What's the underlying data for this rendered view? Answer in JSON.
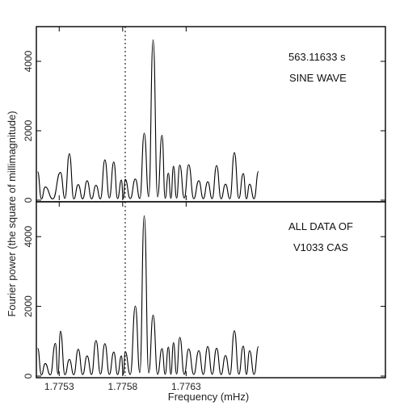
{
  "chart_data": [
    {
      "type": "line",
      "panel": "top",
      "annotations": [
        "563.11633 s",
        "SINE WAVE"
      ],
      "ylim": [
        0,
        5000
      ],
      "yticks": [
        0,
        2000,
        4000
      ],
      "xlim": [
        1.77512,
        1.77787
      ],
      "marker_x": 1.77582,
      "peaks": {
        "x": [
          1.77513,
          1.77519,
          1.77531,
          1.77538,
          1.77545,
          1.77552,
          1.77559,
          1.77566,
          1.77573,
          1.77579,
          1.77582,
          1.7759,
          1.77597,
          1.77604,
          1.77611,
          1.77616,
          1.7762,
          1.77625,
          1.77632,
          1.7764,
          1.77647,
          1.77654,
          1.77661,
          1.77668,
          1.77675,
          1.7768,
          1.77687
        ],
        "y": [
          820,
          380,
          800,
          1340,
          450,
          560,
          430,
          1160,
          1100,
          580,
          600,
          610,
          1930,
          4620,
          1870,
          780,
          980,
          1010,
          1020,
          560,
          530,
          1000,
          460,
          1370,
          770,
          460,
          830
        ]
      }
    },
    {
      "type": "line",
      "panel": "bottom",
      "annotations": [
        "ALL DATA OF",
        "V1033  CAS"
      ],
      "ylim": [
        0,
        5000
      ],
      "yticks": [
        0,
        2000,
        4000
      ],
      "xlim": [
        1.77512,
        1.77787
      ],
      "marker_x": 1.77582,
      "peaks": {
        "x": [
          1.77513,
          1.77519,
          1.77527,
          1.77531,
          1.77538,
          1.77545,
          1.77552,
          1.77559,
          1.77566,
          1.77573,
          1.77579,
          1.77582,
          1.7759,
          1.77597,
          1.77604,
          1.77611,
          1.77616,
          1.7762,
          1.77625,
          1.77632,
          1.7764,
          1.77647,
          1.77654,
          1.77661,
          1.77668,
          1.77675,
          1.7768,
          1.77687
        ],
        "y": [
          800,
          360,
          940,
          1290,
          480,
          770,
          580,
          1020,
          930,
          690,
          580,
          700,
          2010,
          4600,
          1750,
          790,
          830,
          960,
          1110,
          780,
          730,
          850,
          800,
          590,
          1300,
          860,
          730,
          850
        ]
      }
    }
  ],
  "axes": {
    "xlabel": "Frequency (mHz)",
    "ylabel": "Fourier power (the square of millimagnitude)",
    "xticks": [
      1.7753,
      1.7758,
      1.7763
    ],
    "xtick_labels": [
      "1.7753",
      "1.7758",
      "1.7763"
    ],
    "ytick_labels": [
      "0",
      "2000",
      "4000"
    ]
  }
}
